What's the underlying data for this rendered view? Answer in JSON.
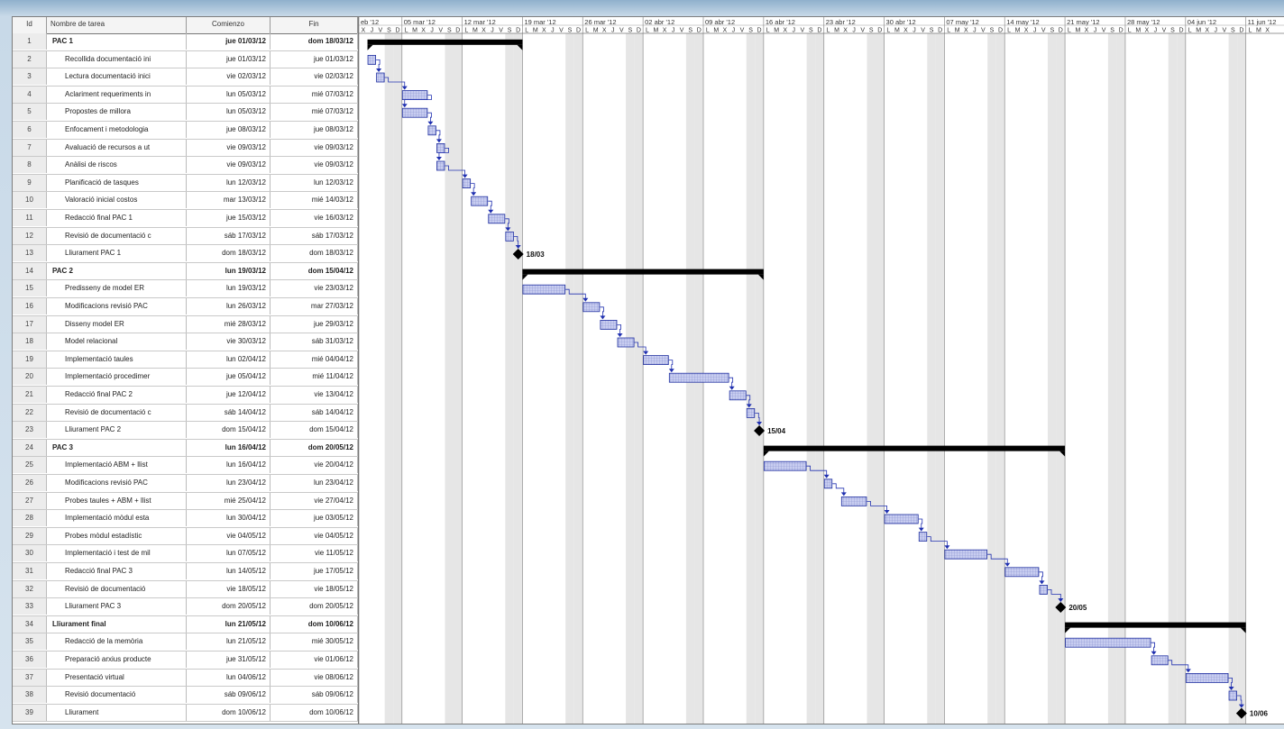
{
  "columns": {
    "id": "Id",
    "name": "Nombre de tarea",
    "start": "Comienzo",
    "end": "Fin"
  },
  "week_labels": [
    "eb '12",
    "05 mar '12",
    "12 mar '12",
    "19 mar '12",
    "26 mar '12",
    "02 abr '12",
    "09 abr '12",
    "16 abr '12",
    "23 abr '12",
    "30 abr '12",
    "07 may '12",
    "14 may '12",
    "21 may '12",
    "28 may '12",
    "04 jun '12",
    "11 jun '12"
  ],
  "day_letters": [
    "X",
    "J",
    "V",
    "S",
    "D",
    "L",
    "M"
  ],
  "colors": {
    "task_fill": "#c8cdf0",
    "task_border": "#2030a0",
    "link": "#2030b0",
    "summary": "#000000",
    "weekend": "#e6e6e6"
  },
  "chart_data": {
    "type": "gantt",
    "timeline_start": "2012-02-29",
    "timeline_end": "2012-06-13",
    "tasks": [
      {
        "id": "1",
        "name": "PAC 1",
        "start_label": "jue 01/03/12",
        "end_label": "dom 18/03/12",
        "start": "2012-03-01",
        "end": "2012-03-18",
        "kind": "summary"
      },
      {
        "id": "2",
        "name": "Recollida documentació ini",
        "start_label": "jue 01/03/12",
        "end_label": "jue 01/03/12",
        "start": "2012-03-01",
        "end": "2012-03-01",
        "kind": "task"
      },
      {
        "id": "3",
        "name": "Lectura documentació inici",
        "start_label": "vie 02/03/12",
        "end_label": "vie 02/03/12",
        "start": "2012-03-02",
        "end": "2012-03-02",
        "kind": "task"
      },
      {
        "id": "4",
        "name": "Aclariment requeriments in",
        "start_label": "lun 05/03/12",
        "end_label": "mié 07/03/12",
        "start": "2012-03-05",
        "end": "2012-03-07",
        "kind": "task"
      },
      {
        "id": "5",
        "name": "Propostes de millora",
        "start_label": "lun 05/03/12",
        "end_label": "mié 07/03/12",
        "start": "2012-03-05",
        "end": "2012-03-07",
        "kind": "task"
      },
      {
        "id": "6",
        "name": "Enfocament i metodologia",
        "start_label": "jue 08/03/12",
        "end_label": "jue 08/03/12",
        "start": "2012-03-08",
        "end": "2012-03-08",
        "kind": "task"
      },
      {
        "id": "7",
        "name": "Avaluació de recursos a ut",
        "start_label": "vie 09/03/12",
        "end_label": "vie 09/03/12",
        "start": "2012-03-09",
        "end": "2012-03-09",
        "kind": "task"
      },
      {
        "id": "8",
        "name": "Anàlisi de riscos",
        "start_label": "vie 09/03/12",
        "end_label": "vie 09/03/12",
        "start": "2012-03-09",
        "end": "2012-03-09",
        "kind": "task"
      },
      {
        "id": "9",
        "name": "Planificació de tasques",
        "start_label": "lun 12/03/12",
        "end_label": "lun 12/03/12",
        "start": "2012-03-12",
        "end": "2012-03-12",
        "kind": "task"
      },
      {
        "id": "10",
        "name": "Valoració inicial costos",
        "start_label": "mar 13/03/12",
        "end_label": "mié 14/03/12",
        "start": "2012-03-13",
        "end": "2012-03-14",
        "kind": "task"
      },
      {
        "id": "11",
        "name": "Redacció final PAC 1",
        "start_label": "jue 15/03/12",
        "end_label": "vie 16/03/12",
        "start": "2012-03-15",
        "end": "2012-03-16",
        "kind": "task"
      },
      {
        "id": "12",
        "name": "Revisió de documentació c",
        "start_label": "sáb 17/03/12",
        "end_label": "sáb 17/03/12",
        "start": "2012-03-17",
        "end": "2012-03-17",
        "kind": "task"
      },
      {
        "id": "13",
        "name": "Lliurament PAC 1",
        "start_label": "dom 18/03/12",
        "end_label": "dom 18/03/12",
        "start": "2012-03-18",
        "end": "2012-03-18",
        "kind": "milestone",
        "label": "18/03"
      },
      {
        "id": "14",
        "name": "PAC 2",
        "start_label": "lun 19/03/12",
        "end_label": "dom 15/04/12",
        "start": "2012-03-19",
        "end": "2012-04-15",
        "kind": "summary"
      },
      {
        "id": "15",
        "name": "Predisseny de model ER",
        "start_label": "lun 19/03/12",
        "end_label": "vie 23/03/12",
        "start": "2012-03-19",
        "end": "2012-03-23",
        "kind": "task"
      },
      {
        "id": "16",
        "name": "Modificacions revisió PAC",
        "start_label": "lun 26/03/12",
        "end_label": "mar 27/03/12",
        "start": "2012-03-26",
        "end": "2012-03-27",
        "kind": "task"
      },
      {
        "id": "17",
        "name": "Disseny model ER",
        "start_label": "mié 28/03/12",
        "end_label": "jue 29/03/12",
        "start": "2012-03-28",
        "end": "2012-03-29",
        "kind": "task"
      },
      {
        "id": "18",
        "name": "Model relacional",
        "start_label": "vie 30/03/12",
        "end_label": "sáb 31/03/12",
        "start": "2012-03-30",
        "end": "2012-03-31",
        "kind": "task"
      },
      {
        "id": "19",
        "name": "Implementació taules",
        "start_label": "lun 02/04/12",
        "end_label": "mié 04/04/12",
        "start": "2012-04-02",
        "end": "2012-04-04",
        "kind": "task"
      },
      {
        "id": "20",
        "name": "Implementació procedimer",
        "start_label": "jue 05/04/12",
        "end_label": "mié 11/04/12",
        "start": "2012-04-05",
        "end": "2012-04-11",
        "kind": "task"
      },
      {
        "id": "21",
        "name": "Redacció final PAC 2",
        "start_label": "jue 12/04/12",
        "end_label": "vie 13/04/12",
        "start": "2012-04-12",
        "end": "2012-04-13",
        "kind": "task"
      },
      {
        "id": "22",
        "name": "Revisió de documentació c",
        "start_label": "sáb 14/04/12",
        "end_label": "sáb 14/04/12",
        "start": "2012-04-14",
        "end": "2012-04-14",
        "kind": "task"
      },
      {
        "id": "23",
        "name": "Lliurament PAC 2",
        "start_label": "dom 15/04/12",
        "end_label": "dom 15/04/12",
        "start": "2012-04-15",
        "end": "2012-04-15",
        "kind": "milestone",
        "label": "15/04"
      },
      {
        "id": "24",
        "name": "PAC 3",
        "start_label": "lun 16/04/12",
        "end_label": "dom 20/05/12",
        "start": "2012-04-16",
        "end": "2012-05-20",
        "kind": "summary"
      },
      {
        "id": "25",
        "name": "Implementació  ABM + llist",
        "start_label": "lun 16/04/12",
        "end_label": "vie 20/04/12",
        "start": "2012-04-16",
        "end": "2012-04-20",
        "kind": "task"
      },
      {
        "id": "26",
        "name": "Modificacions revisió PAC",
        "start_label": "lun 23/04/12",
        "end_label": "lun 23/04/12",
        "start": "2012-04-23",
        "end": "2012-04-23",
        "kind": "task"
      },
      {
        "id": "27",
        "name": "Probes taules + ABM + llist",
        "start_label": "mié 25/04/12",
        "end_label": "vie 27/04/12",
        "start": "2012-04-25",
        "end": "2012-04-27",
        "kind": "task"
      },
      {
        "id": "28",
        "name": "Implementació mòdul esta",
        "start_label": "lun 30/04/12",
        "end_label": "jue 03/05/12",
        "start": "2012-04-30",
        "end": "2012-05-03",
        "kind": "task"
      },
      {
        "id": "29",
        "name": "Probes mòdul estadístic",
        "start_label": "vie 04/05/12",
        "end_label": "vie 04/05/12",
        "start": "2012-05-04",
        "end": "2012-05-04",
        "kind": "task"
      },
      {
        "id": "30",
        "name": "Implementació i test de mil",
        "start_label": "lun 07/05/12",
        "end_label": "vie 11/05/12",
        "start": "2012-05-07",
        "end": "2012-05-11",
        "kind": "task"
      },
      {
        "id": "31",
        "name": "Redacció final PAC 3",
        "start_label": "lun 14/05/12",
        "end_label": "jue 17/05/12",
        "start": "2012-05-14",
        "end": "2012-05-17",
        "kind": "task"
      },
      {
        "id": "32",
        "name": "Revisió de documentació",
        "start_label": "vie 18/05/12",
        "end_label": "vie 18/05/12",
        "start": "2012-05-18",
        "end": "2012-05-18",
        "kind": "task"
      },
      {
        "id": "33",
        "name": "Lliurament PAC 3",
        "start_label": "dom 20/05/12",
        "end_label": "dom 20/05/12",
        "start": "2012-05-20",
        "end": "2012-05-20",
        "kind": "milestone",
        "label": "20/05"
      },
      {
        "id": "34",
        "name": "Lliurament final",
        "start_label": "lun 21/05/12",
        "end_label": "dom 10/06/12",
        "start": "2012-05-21",
        "end": "2012-06-10",
        "kind": "summary"
      },
      {
        "id": "35",
        "name": "Redacció de la memòria",
        "start_label": "lun 21/05/12",
        "end_label": "mié 30/05/12",
        "start": "2012-05-21",
        "end": "2012-05-30",
        "kind": "task"
      },
      {
        "id": "36",
        "name": "Preparació arxius producte",
        "start_label": "jue 31/05/12",
        "end_label": "vie 01/06/12",
        "start": "2012-05-31",
        "end": "2012-06-01",
        "kind": "task"
      },
      {
        "id": "37",
        "name": "Presentació virtual",
        "start_label": "lun 04/06/12",
        "end_label": "vie 08/06/12",
        "start": "2012-06-04",
        "end": "2012-06-08",
        "kind": "task"
      },
      {
        "id": "38",
        "name": "Revisió documentació",
        "start_label": "sáb 09/06/12",
        "end_label": "sáb 09/06/12",
        "start": "2012-06-09",
        "end": "2012-06-09",
        "kind": "task"
      },
      {
        "id": "39",
        "name": "Lliurament",
        "start_label": "dom 10/06/12",
        "end_label": "dom 10/06/12",
        "start": "2012-06-10",
        "end": "2012-06-10",
        "kind": "milestone",
        "label": "10/06"
      }
    ]
  }
}
